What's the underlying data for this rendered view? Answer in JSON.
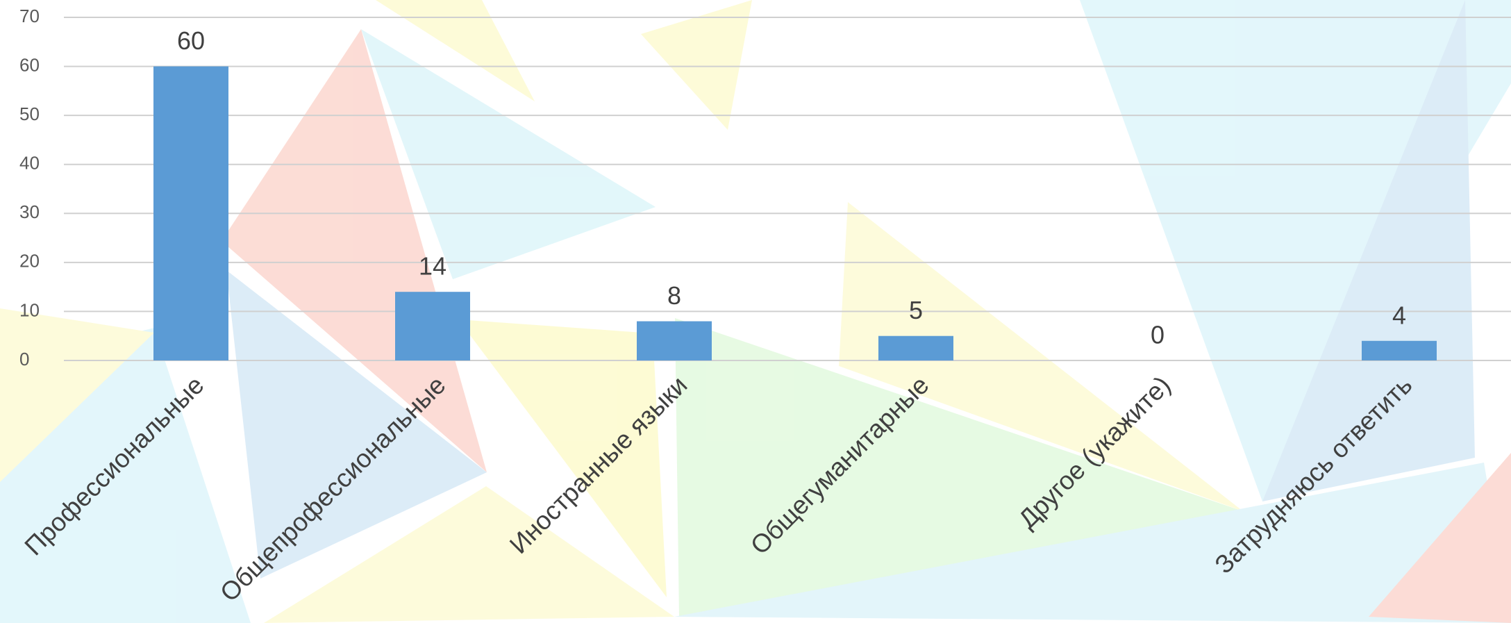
{
  "chart_data": {
    "type": "bar",
    "categories": [
      "Профессиональные",
      "Общепрофессиональные",
      "Иностранные языки",
      "Общегуманитарные",
      "Другое (укажите)",
      "Затрудняюсь ответить"
    ],
    "values": [
      60,
      14,
      8,
      5,
      0,
      4
    ],
    "color": "#5b9bd5",
    "ylim": [
      0,
      70
    ],
    "yticks": [
      0,
      10,
      20,
      30,
      40,
      50,
      60,
      70
    ],
    "grid": true
  }
}
